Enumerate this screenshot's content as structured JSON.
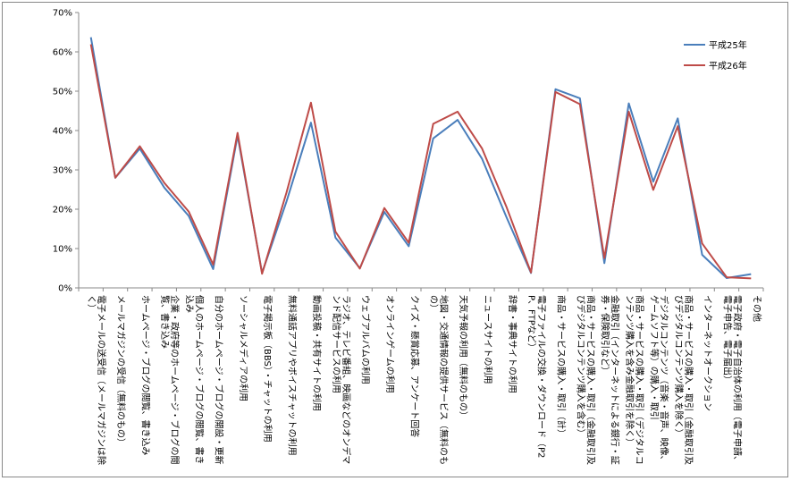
{
  "chart_data": {
    "type": "line",
    "categories": [
      "電子メールの送受信（メールマガジンは除く）",
      "メールマガジンの受信（無料のもの）",
      "ホームページ・ブログの閲覧、書き込み",
      "企業・政府等のホームページ・ブログの閲覧、書き込み",
      "個人のホームページ・ブログの閲覧、書き込み",
      "自分のホームページ・ブログの開設・更新",
      "ソーシャルメディアの利用",
      "電子掲示板（BBS）・チャットの利用",
      "無料通話アプリやボイスチャットの利用",
      "動画投稿・共有サイトの利用",
      "ラジオ、テレビ番組、映画などのオンデマンド配信サービスの利用",
      "ウェブアルバムの利用",
      "オンラインゲームの利用",
      "クイズ・懸賞応募、アンケート回答",
      "地図・交通情報の提供サービス（無料のもの）",
      "天気予報の利用（無料のもの）",
      "ニュースサイトの利用",
      "辞書・事典サイトの利用",
      "電子ファイルの交換・ダウンロード（P2P、FTPなど）",
      "商品・サービスの購入・取引（計）",
      "商品・サービスの購入・取引（金融取引及びデジタルコンテンツ購入を含む）",
      "金融取引（インターネットによる銀行・証券・保険取引など）",
      "商品・サービスの購入・取引（デジタルコンテンツ購入を含み金融取引を除く）",
      "デジタルコンテンツ（音楽・音声、映像、ゲームソフト等）の購入・取引",
      "商品・サービスの購入・取引（金融取引及びデジタルコンテンツ購入を除く）",
      "インターネットオークション",
      "電子政府・電子自治体の利用（電子申請、電子申告、電子届出）",
      "その他"
    ],
    "series": [
      {
        "name": "平成25年",
        "color": "#4a7ebb",
        "values": [
          63.7,
          28.0,
          35.4,
          25.5,
          18.3,
          4.8,
          38.7,
          3.8,
          21.9,
          42.0,
          12.8,
          5.0,
          19.3,
          10.6,
          38.0,
          42.7,
          32.8,
          17.9,
          3.8,
          50.5,
          48.2,
          6.3,
          46.9,
          27.0,
          43.1,
          8.4,
          2.5,
          3.5
        ]
      },
      {
        "name": "平成26年",
        "color": "#be4b48",
        "values": [
          61.9,
          28.0,
          36.0,
          26.7,
          19.4,
          5.9,
          39.4,
          3.6,
          24.2,
          47.1,
          14.3,
          4.9,
          20.3,
          11.5,
          41.7,
          44.8,
          35.4,
          20.5,
          3.9,
          49.8,
          46.7,
          7.6,
          44.8,
          24.9,
          41.1,
          11.3,
          2.7,
          2.4
        ]
      }
    ],
    "y_ticks": [
      "0%",
      "10%",
      "20%",
      "30%",
      "40%",
      "50%",
      "60%",
      "70%"
    ],
    "ylim": [
      0,
      70
    ],
    "grid": false,
    "legend_position": "top-right"
  }
}
